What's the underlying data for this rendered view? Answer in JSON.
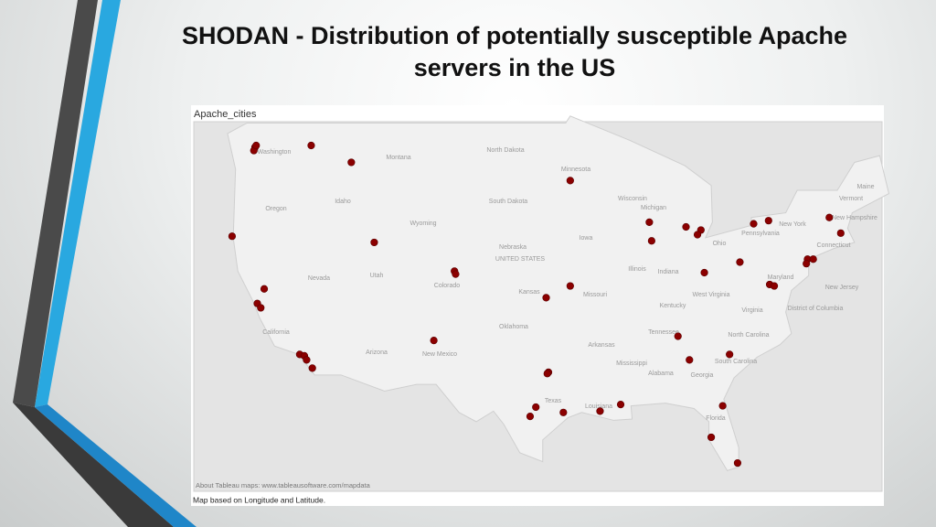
{
  "title": "SHODAN - Distribution of potentially susceptible Apache servers in the US",
  "sheet_title": "Apache_cities",
  "attribution": "About Tableau maps: www.tableausoftware.com/mapdata",
  "caption": "Map based on Longitude and Latitude.",
  "map": {
    "point_color": "#8b0000",
    "labels": [
      "Washington",
      "Montana",
      "North Dakota",
      "Minnesota",
      "Oregon",
      "Idaho",
      "South Dakota",
      "Wisconsin",
      "Michigan",
      "Wyoming",
      "Nebraska",
      "UNITED STATES",
      "Iowa",
      "Nevada",
      "Utah",
      "Colorado",
      "Illinois",
      "Indiana",
      "Ohio",
      "Pennsylvania",
      "New York",
      "Vermont",
      "Maine",
      "New Hampshire",
      "Connecticut",
      "Kansas",
      "Missouri",
      "California",
      "Kentucky",
      "West Virginia",
      "Maryland",
      "New Jersey",
      "Virginia",
      "District of Columbia",
      "Oklahoma",
      "Tennessee",
      "North Carolina",
      "Arizona",
      "New Mexico",
      "Arkansas",
      "South Carolina",
      "Mississippi",
      "Alabama",
      "Georgia",
      "Texas",
      "Louisiana",
      "Florida"
    ],
    "points": [
      [
        -122.3,
        47.6
      ],
      [
        -122.4,
        47.4
      ],
      [
        -122.2,
        47.7
      ],
      [
        -117.4,
        47.7
      ],
      [
        -113.9,
        46.7
      ],
      [
        -124.3,
        42.1
      ],
      [
        -111.9,
        41.7
      ],
      [
        -104.9,
        39.8
      ],
      [
        -104.8,
        39.6
      ],
      [
        -121.5,
        38.6
      ],
      [
        -122.1,
        37.6
      ],
      [
        -121.8,
        37.3
      ],
      [
        -118.4,
        34.0
      ],
      [
        -118.0,
        33.9
      ],
      [
        -117.8,
        33.6
      ],
      [
        -117.3,
        33.0
      ],
      [
        -106.7,
        35.0
      ],
      [
        -94.8,
        45.6
      ],
      [
        -96.9,
        38.0
      ],
      [
        -94.8,
        38.8
      ],
      [
        -96.7,
        32.7
      ],
      [
        -96.8,
        32.6
      ],
      [
        -97.8,
        30.1
      ],
      [
        -98.3,
        29.4
      ],
      [
        -95.4,
        29.7
      ],
      [
        -92.2,
        29.8
      ],
      [
        -90.4,
        30.3
      ],
      [
        -87.9,
        43.0
      ],
      [
        -87.7,
        41.8
      ],
      [
        -84.7,
        42.7
      ],
      [
        -83.4,
        42.5
      ],
      [
        -83.7,
        42.2
      ],
      [
        -83.1,
        39.7
      ],
      [
        -85.4,
        35.3
      ],
      [
        -84.4,
        33.6
      ],
      [
        -80.9,
        34.0
      ],
      [
        -80.0,
        40.4
      ],
      [
        -78.8,
        42.9
      ],
      [
        -77.5,
        43.1
      ],
      [
        -72.2,
        43.3
      ],
      [
        -71.2,
        42.3
      ],
      [
        -74.1,
        40.6
      ],
      [
        -73.6,
        40.6
      ],
      [
        -74.2,
        40.3
      ],
      [
        -77.4,
        38.9
      ],
      [
        -77.0,
        38.8
      ],
      [
        -81.5,
        30.2
      ],
      [
        -82.5,
        27.8
      ],
      [
        -80.2,
        25.8
      ]
    ]
  }
}
